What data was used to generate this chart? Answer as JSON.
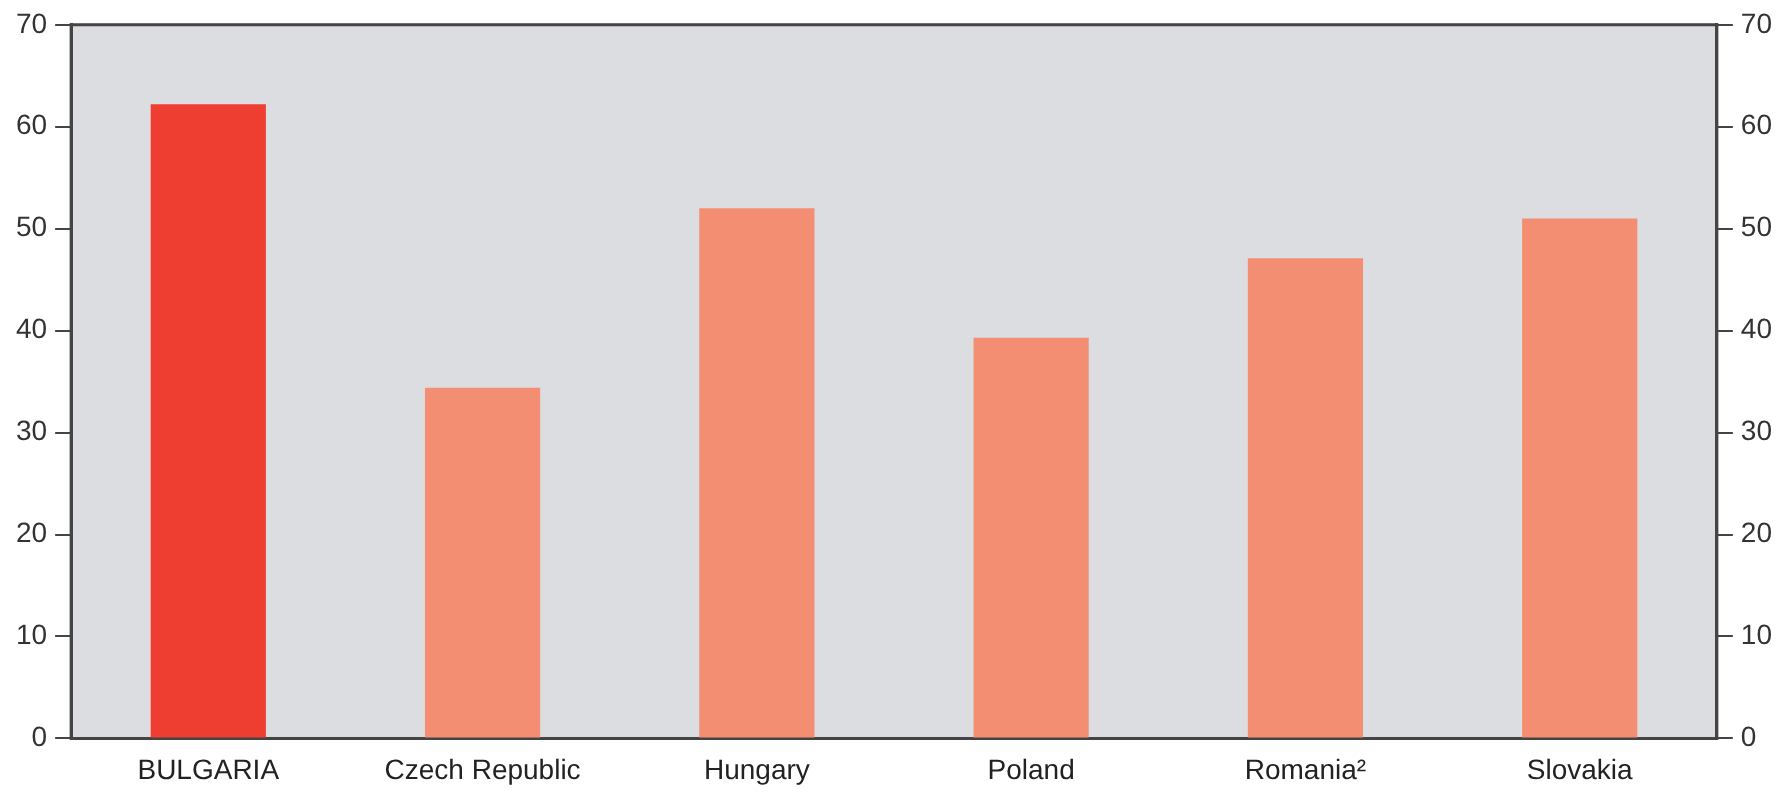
{
  "chart_data": {
    "type": "bar",
    "categories": [
      "BULGARIA",
      "Czech Republic",
      "Hungary",
      "Poland",
      "Romania²",
      "Slovakia"
    ],
    "values": [
      62.2,
      34.4,
      52.0,
      39.3,
      47.1,
      51.0
    ],
    "colors": [
      "#ee3d31",
      "#f48e73",
      "#f48e73",
      "#f48e73",
      "#f48e73",
      "#f48e73"
    ],
    "ylim": [
      0,
      70
    ],
    "yticks": [
      0,
      10,
      20,
      30,
      40,
      50,
      60,
      70
    ],
    "y2lim": [
      0,
      70
    ],
    "y2ticks": [
      0,
      10,
      20,
      30,
      40,
      50,
      60,
      70
    ],
    "grid": false,
    "legend": false
  }
}
